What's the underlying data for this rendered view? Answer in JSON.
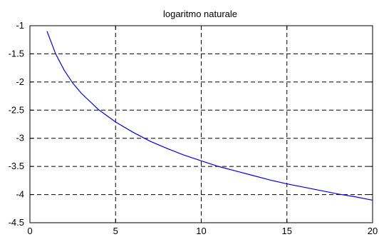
{
  "chart_data": {
    "type": "line",
    "title": "logaritmo naturale",
    "xlabel": "",
    "ylabel": "",
    "xlim": [
      0,
      20
    ],
    "ylim": [
      -4.5,
      -1
    ],
    "xticks": [
      0,
      5,
      10,
      15,
      20
    ],
    "yticks": [
      -1,
      -1.5,
      -2,
      -2.5,
      -3,
      -3.5,
      -4,
      -4.5
    ],
    "xtick_labels": [
      "0",
      "5",
      "10",
      "15",
      "20"
    ],
    "ytick_labels": [
      "-1",
      "-1.5",
      "-2",
      "-2.5",
      "-3",
      "-3.5",
      "-4",
      "-4.5"
    ],
    "grid": true,
    "series": [
      {
        "color": "#0000ff",
        "x": [
          1,
          1.5,
          2,
          2.5,
          3,
          4,
          5,
          6,
          7,
          8,
          9,
          10,
          11,
          12,
          13,
          14,
          15,
          16,
          17,
          18,
          19,
          20
        ],
        "y": [
          -1.1,
          -1.5,
          -1.79,
          -2.02,
          -2.2,
          -2.49,
          -2.71,
          -2.89,
          -3.05,
          -3.18,
          -3.3,
          -3.4,
          -3.5,
          -3.58,
          -3.66,
          -3.74,
          -3.81,
          -3.87,
          -3.93,
          -3.99,
          -4.04,
          -4.1
        ]
      }
    ]
  }
}
